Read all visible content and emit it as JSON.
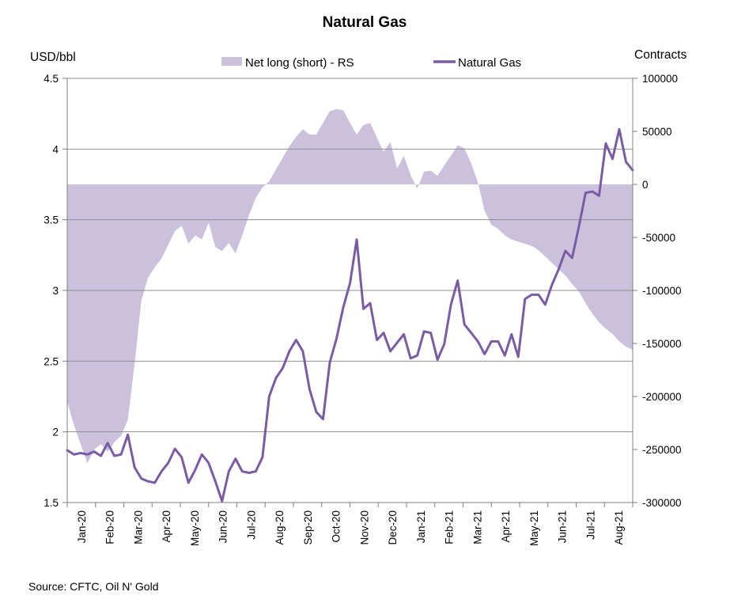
{
  "header": {
    "title": "Natural Gas"
  },
  "axes": {
    "left_title": "USD/bbl",
    "right_title": "Contracts"
  },
  "legend": {
    "area_label": "Net long (short) - RS",
    "line_label": "Natural Gas"
  },
  "footer": {
    "source": "Source: CFTC, Oil N' Gold"
  },
  "colors": {
    "area": "#CBC1DD",
    "line": "#7A5CA5",
    "grid": "#8F8F8F",
    "axis": "#7F7F7F",
    "text": "#000000"
  },
  "chart_data": {
    "type": "area+line (combo, dual axis, weekly points)",
    "title": "Natural Gas",
    "legend_position": "top",
    "grid": "horizontal gridlines at each 0.5 step of left axis",
    "categories": [
      "Jan-20",
      "Feb-20",
      "Mar-20",
      "Apr-20",
      "May-20",
      "Jun-20",
      "Jul-20",
      "Aug-20",
      "Sep-20",
      "Oct-20",
      "Nov-20",
      "Dec-20",
      "Jan-21",
      "Feb-21",
      "Mar-21",
      "Apr-21",
      "May-21",
      "Jun-21",
      "Jul-21",
      "Aug-21"
    ],
    "left_axis": {
      "label": "USD/bbl",
      "min": 1.5,
      "max": 4.5,
      "tick_values": [
        4.5,
        4,
        3.5,
        3,
        2.5,
        2,
        1.5
      ],
      "tick_labels": [
        "4.5",
        "4",
        "3.5",
        "3",
        "2.5",
        "2",
        "1.5"
      ]
    },
    "right_axis": {
      "label": "Contracts",
      "min": -300000,
      "max": 100000,
      "tick_values": [
        100000,
        50000,
        0,
        -50000,
        -100000,
        -150000,
        -200000,
        -250000,
        -300000
      ],
      "tick_labels": [
        "100000",
        "50000",
        "0",
        "-50000",
        "-100000",
        "-150000",
        "-200000",
        "-250000",
        "-300000"
      ]
    },
    "series": [
      {
        "name": "Net long (short) - RS",
        "type": "area",
        "axis": "right",
        "unit": "contracts",
        "values": [
          -205000,
          -227000,
          -245000,
          -263000,
          -250000,
          -245000,
          -252000,
          -243000,
          -237000,
          -222000,
          -170000,
          -110000,
          -88000,
          -78000,
          -70000,
          -57000,
          -44000,
          -39000,
          -56000,
          -48000,
          -52000,
          -36000,
          -59000,
          -63000,
          -55000,
          -65000,
          -48000,
          -29000,
          -13000,
          -3000,
          3000,
          14000,
          25000,
          36000,
          45000,
          52000,
          47000,
          47000,
          58000,
          69000,
          71000,
          70000,
          58000,
          47000,
          56000,
          58000,
          44000,
          31000,
          40000,
          15000,
          27000,
          9000,
          -4000,
          12000,
          13000,
          8000,
          18000,
          27000,
          37000,
          34000,
          20000,
          2000,
          -25000,
          -38000,
          -42000,
          -48000,
          -52000,
          -54000,
          -56000,
          -58000,
          -62000,
          -68000,
          -74000,
          -80000,
          -86000,
          -94000,
          -101000,
          -112000,
          -122000,
          -130000,
          -136000,
          -141000,
          -148000,
          -153000,
          -156000
        ]
      },
      {
        "name": "Natural Gas",
        "type": "line",
        "axis": "left",
        "unit": "USD/bbl",
        "values": [
          1.87,
          1.84,
          1.85,
          1.84,
          1.86,
          1.83,
          1.92,
          1.83,
          1.84,
          1.98,
          1.75,
          1.67,
          1.65,
          1.64,
          1.72,
          1.78,
          1.88,
          1.82,
          1.64,
          1.73,
          1.84,
          1.78,
          1.65,
          1.51,
          1.72,
          1.81,
          1.72,
          1.71,
          1.72,
          1.82,
          2.25,
          2.38,
          2.45,
          2.57,
          2.65,
          2.57,
          2.3,
          2.14,
          2.09,
          2.49,
          2.66,
          2.88,
          3.05,
          3.36,
          2.87,
          2.91,
          2.65,
          2.7,
          2.57,
          2.63,
          2.69,
          2.52,
          2.54,
          2.71,
          2.7,
          2.51,
          2.62,
          2.9,
          3.07,
          2.76,
          2.7,
          2.64,
          2.55,
          2.64,
          2.64,
          2.54,
          2.69,
          2.53,
          2.94,
          2.97,
          2.97,
          2.9,
          3.04,
          3.15,
          3.28,
          3.23,
          3.45,
          3.69,
          3.7,
          3.67,
          4.04,
          3.93,
          4.14,
          3.91,
          3.85
        ]
      }
    ]
  }
}
